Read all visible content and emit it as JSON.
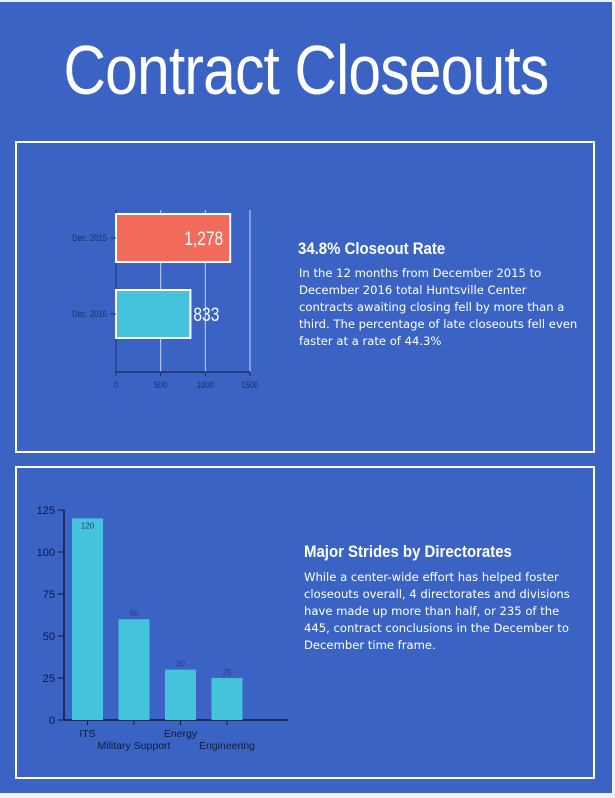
{
  "title": "Contract Closeouts",
  "colors": {
    "background": "#3a63c4",
    "bar_2015": "#f26b5b",
    "bar_2016": "#45c3dc",
    "bar_directorates": "#45c3dc"
  },
  "section1": {
    "heading": "34.8% Closeout Rate",
    "body": "In the 12 months from December 2015 to December 2016 total Huntsville Center contracts awaiting closing fell by more than a third.  The percentage of late closeouts fell even faster at a rate of 44.3%"
  },
  "section2": {
    "heading": "Major Strides by Directorates",
    "body": "While a center-wide effort has helped foster closeouts overall, 4 directorates and divisions have made up more than half, or 235 of the 445, contract conclusions in the December to December time frame."
  },
  "chart_data": [
    {
      "type": "bar",
      "orientation": "horizontal",
      "categories": [
        "Dec. 2015",
        "Dec. 2016"
      ],
      "values": [
        1278,
        833
      ],
      "data_labels": [
        "1,278",
        "833"
      ],
      "xlim": [
        0,
        1500
      ],
      "xticks": [
        "0",
        "500",
        "1000",
        "1500"
      ],
      "grid": true
    },
    {
      "type": "bar",
      "orientation": "vertical",
      "categories": [
        "ITS",
        "Military Support",
        "Energy",
        "Engineering"
      ],
      "values": [
        120,
        60,
        30,
        25
      ],
      "data_labels": [
        "120",
        "60",
        "30",
        "25"
      ],
      "ylim": [
        0,
        125
      ],
      "yticks": [
        "0",
        "25",
        "50",
        "75",
        "100",
        "125"
      ],
      "grid": false
    }
  ]
}
